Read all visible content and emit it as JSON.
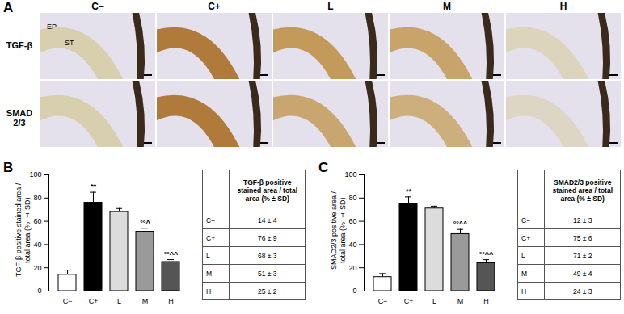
{
  "panel_a": {
    "label": "A",
    "columns": [
      "C−",
      "C+",
      "L",
      "M",
      "H"
    ],
    "rows": [
      "TGF-β",
      "SMAD 2/3"
    ],
    "tissue_labels": [
      "EP",
      "ST"
    ]
  },
  "chart_data": [
    {
      "panel": "B",
      "type": "bar",
      "ylabel": [
        "TGF-β positive stained area /",
        "total area (% ± SD)"
      ],
      "categories": [
        "C−",
        "C+",
        "L",
        "M",
        "H"
      ],
      "values": [
        14,
        76,
        68,
        51,
        25
      ],
      "errors": [
        4,
        9,
        3,
        3,
        2
      ],
      "annotations": [
        null,
        "**",
        null,
        "°°^",
        "°°^^"
      ],
      "colors": [
        "#ffffff",
        "#000000",
        "#dcdcdc",
        "#9a9a9a",
        "#555555"
      ],
      "ylim": [
        0,
        100
      ],
      "yticks": [
        0,
        20,
        40,
        60,
        80,
        100
      ],
      "table": {
        "header": "TGF-β positive stained area / total area (% ± SD)",
        "rows": [
          [
            "C−",
            "14 ± 4"
          ],
          [
            "C+",
            "76 ± 9"
          ],
          [
            "L",
            "68 ± 3"
          ],
          [
            "M",
            "51 ± 3"
          ],
          [
            "H",
            "25 ± 2"
          ]
        ]
      }
    },
    {
      "panel": "C",
      "type": "bar",
      "ylabel": [
        "SMAD2/3 positive area /",
        "total area (% ± SD)"
      ],
      "categories": [
        "C−",
        "C+",
        "L",
        "M",
        "H"
      ],
      "values": [
        12,
        75,
        71,
        49,
        24
      ],
      "errors": [
        3,
        6,
        2,
        4,
        3
      ],
      "annotations": [
        null,
        "**",
        null,
        "°°^^",
        "°°^^"
      ],
      "colors": [
        "#ffffff",
        "#000000",
        "#dcdcdc",
        "#9a9a9a",
        "#555555"
      ],
      "ylim": [
        0,
        100
      ],
      "yticks": [
        0,
        20,
        40,
        60,
        80,
        100
      ],
      "table": {
        "header": "SMAD2/3 positive stained area / total area (% ± SD)",
        "rows": [
          [
            "C−",
            "12 ± 3"
          ],
          [
            "C+",
            "75 ± 6"
          ],
          [
            "L",
            "71 ± 2"
          ],
          [
            "M",
            "49 ± 4"
          ],
          [
            "H",
            "24 ± 3"
          ]
        ]
      }
    }
  ]
}
